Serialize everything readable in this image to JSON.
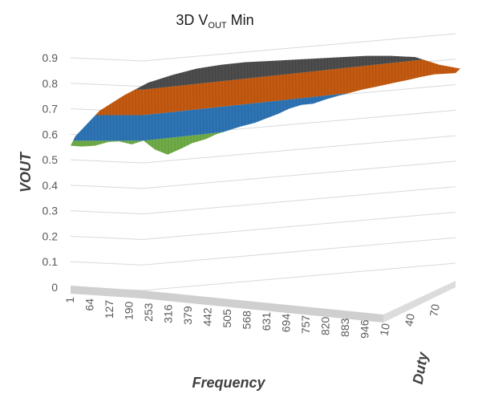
{
  "chart_data": {
    "type": "surface",
    "title": {
      "prefix": "3D V",
      "subscript": "OUT",
      "suffix": " Min"
    },
    "zlabel": "VOUT",
    "xlabel": "Frequency",
    "ylabel": "Duty",
    "zlim": [
      0,
      0.9
    ],
    "z_ticks": [
      "0",
      "0.1",
      "0.2",
      "0.3",
      "0.4",
      "0.5",
      "0.6",
      "0.7",
      "0.8",
      "0.9"
    ],
    "x_ticks": [
      "1",
      "64",
      "127",
      "190",
      "253",
      "316",
      "379",
      "442",
      "505",
      "568",
      "631",
      "694",
      "757",
      "820",
      "883",
      "946"
    ],
    "y_ticks": [
      "10",
      "40",
      "70"
    ],
    "grid": true,
    "color_bands": [
      {
        "range": [
          0.5,
          0.6
        ],
        "color": "#70ad47"
      },
      {
        "range": [
          0.6,
          0.7
        ],
        "color": "#2e75b6"
      },
      {
        "range": [
          0.7,
          0.8
        ],
        "color": "#c55a11"
      },
      {
        "range": [
          0.8,
          0.9
        ],
        "color": "#4d4d4d"
      }
    ],
    "front_edge_profile": {
      "frequency": [
        1,
        30,
        64,
        100,
        127,
        160,
        190,
        220,
        253,
        290,
        316,
        350,
        379,
        420,
        442,
        480,
        505,
        540,
        568,
        600,
        631,
        660,
        694,
        720,
        757,
        790,
        820,
        850,
        883,
        910,
        946,
        1000
      ],
      "vout": [
        0.555,
        0.552,
        0.555,
        0.57,
        0.572,
        0.56,
        0.575,
        0.54,
        0.52,
        0.545,
        0.565,
        0.58,
        0.6,
        0.62,
        0.63,
        0.645,
        0.66,
        0.68,
        0.7,
        0.715,
        0.72,
        0.735,
        0.75,
        0.76,
        0.775,
        0.785,
        0.795,
        0.805,
        0.815,
        0.825,
        0.835,
        0.84
      ]
    },
    "back_edge_profile": {
      "frequency": [
        1,
        64,
        127,
        190,
        253,
        316,
        379,
        442,
        505,
        568,
        631,
        694,
        757,
        820,
        883,
        946,
        1000
      ],
      "vout": [
        0.58,
        0.68,
        0.74,
        0.79,
        0.82,
        0.845,
        0.86,
        0.87,
        0.875,
        0.88,
        0.885,
        0.89,
        0.895,
        0.895,
        0.89,
        0.86,
        0.845
      ]
    }
  }
}
